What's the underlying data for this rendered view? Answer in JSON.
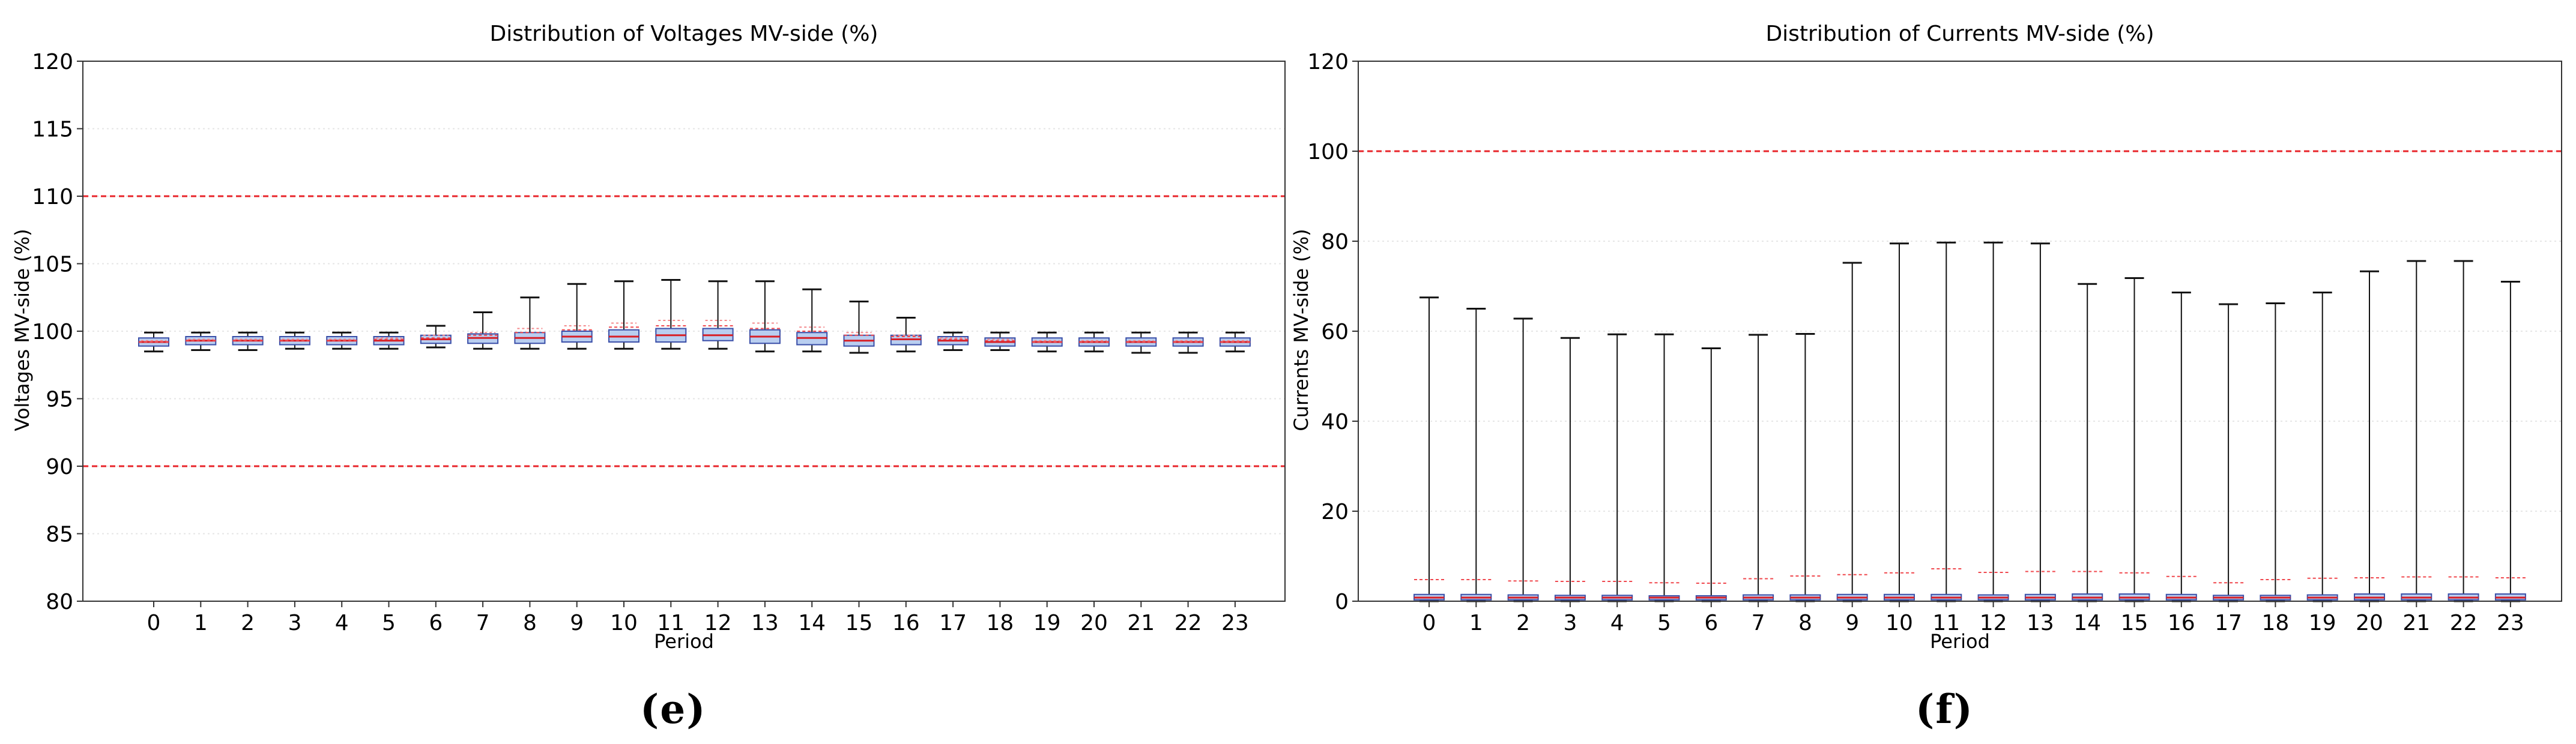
{
  "chart_data": [
    {
      "type": "box",
      "title": "Distribution of Voltages MV-side (%)",
      "xlabel": "Period",
      "ylabel": "Voltages MV-side (%)",
      "ylim": [
        80,
        120
      ],
      "yticks": [
        80,
        85,
        90,
        95,
        100,
        105,
        110,
        115,
        120
      ],
      "categories": [
        "0",
        "1",
        "2",
        "3",
        "4",
        "5",
        "6",
        "7",
        "8",
        "9",
        "10",
        "11",
        "12",
        "13",
        "14",
        "15",
        "16",
        "17",
        "18",
        "19",
        "20",
        "21",
        "22",
        "23"
      ],
      "reference_lines": [
        110,
        90
      ],
      "grid": "horizontal",
      "panel_label": "e",
      "boxes": {
        "whisker_low": [
          98.5,
          98.6,
          98.6,
          98.7,
          98.7,
          98.7,
          98.8,
          98.7,
          98.7,
          98.7,
          98.7,
          98.7,
          98.7,
          98.5,
          98.5,
          98.4,
          98.5,
          98.6,
          98.6,
          98.5,
          98.5,
          98.4,
          98.4,
          98.5
        ],
        "q1": [
          98.9,
          99.0,
          99.0,
          99.0,
          99.0,
          99.0,
          99.1,
          99.1,
          99.1,
          99.2,
          99.2,
          99.2,
          99.3,
          99.1,
          99.0,
          98.9,
          99.0,
          99.0,
          98.9,
          98.9,
          98.9,
          98.9,
          98.9,
          98.9
        ],
        "median": [
          99.2,
          99.3,
          99.3,
          99.3,
          99.3,
          99.3,
          99.4,
          99.5,
          99.5,
          99.6,
          99.6,
          99.7,
          99.7,
          99.6,
          99.5,
          99.3,
          99.4,
          99.3,
          99.2,
          99.2,
          99.2,
          99.2,
          99.2,
          99.2
        ],
        "q3": [
          99.5,
          99.6,
          99.6,
          99.6,
          99.6,
          99.6,
          99.7,
          99.8,
          99.9,
          100.0,
          100.1,
          100.2,
          100.2,
          100.1,
          99.9,
          99.7,
          99.7,
          99.6,
          99.5,
          99.5,
          99.5,
          99.5,
          99.5,
          99.5
        ],
        "whisker_high": [
          99.9,
          99.9,
          99.9,
          99.9,
          99.9,
          99.9,
          100.4,
          101.4,
          102.5,
          103.5,
          103.7,
          103.8,
          103.7,
          103.7,
          103.1,
          102.2,
          101.0,
          99.9,
          99.9,
          99.9,
          99.9,
          99.9,
          99.9,
          99.9
        ],
        "mean": [
          99.2,
          99.3,
          99.3,
          99.3,
          99.3,
          99.4,
          99.5,
          99.7,
          99.9,
          100.1,
          100.3,
          100.4,
          100.4,
          100.2,
          100.0,
          99.7,
          99.6,
          99.4,
          99.3,
          99.2,
          99.2,
          99.2,
          99.2,
          99.2
        ],
        "mean_dash": [
          99.3,
          99.4,
          99.4,
          99.4,
          99.4,
          99.5,
          99.7,
          99.9,
          100.2,
          100.4,
          100.6,
          100.8,
          100.8,
          100.6,
          100.3,
          99.9,
          99.7,
          99.5,
          99.4,
          99.3,
          99.3,
          99.3,
          99.3,
          99.3
        ]
      }
    },
    {
      "type": "box",
      "title": "Distribution of Currents MV-side (%)",
      "xlabel": "Period",
      "ylabel": "Currents MV-side (%)",
      "ylim": [
        0,
        120
      ],
      "yticks": [
        0,
        20,
        40,
        60,
        80,
        100,
        120
      ],
      "categories": [
        "0",
        "1",
        "2",
        "3",
        "4",
        "5",
        "6",
        "7",
        "8",
        "9",
        "10",
        "11",
        "12",
        "13",
        "14",
        "15",
        "16",
        "17",
        "18",
        "19",
        "20",
        "21",
        "22",
        "23"
      ],
      "reference_lines": [
        100
      ],
      "grid": "horizontal",
      "panel_label": "f",
      "boxes": {
        "whisker_low": [
          0,
          0,
          0,
          0,
          0,
          0,
          0,
          0,
          0,
          0,
          0,
          0,
          0,
          0,
          0,
          0,
          0,
          0,
          0,
          0,
          0,
          0,
          0,
          0
        ],
        "q1": [
          0.3,
          0.3,
          0.3,
          0.3,
          0.3,
          0.3,
          0.3,
          0.3,
          0.3,
          0.3,
          0.3,
          0.3,
          0.3,
          0.3,
          0.3,
          0.3,
          0.3,
          0.3,
          0.3,
          0.3,
          0.3,
          0.3,
          0.3,
          0.3
        ],
        "median": [
          0.8,
          0.8,
          0.8,
          0.8,
          0.8,
          0.8,
          0.8,
          0.8,
          0.8,
          0.8,
          0.8,
          0.8,
          0.8,
          0.8,
          0.8,
          0.8,
          0.8,
          0.8,
          0.8,
          0.8,
          0.8,
          0.8,
          0.8,
          0.8
        ],
        "q3": [
          1.5,
          1.5,
          1.4,
          1.3,
          1.3,
          1.2,
          1.2,
          1.4,
          1.4,
          1.5,
          1.5,
          1.5,
          1.4,
          1.5,
          1.6,
          1.6,
          1.5,
          1.3,
          1.3,
          1.4,
          1.6,
          1.6,
          1.6,
          1.6
        ],
        "whisker_high": [
          67.5,
          65.0,
          62.8,
          58.5,
          59.3,
          59.3,
          56.2,
          59.2,
          59.4,
          75.2,
          79.5,
          79.7,
          79.7,
          79.5,
          70.5,
          71.8,
          68.6,
          66.0,
          66.2,
          68.6,
          73.3,
          75.6,
          75.6,
          71.0
        ],
        "mean": [
          4.8,
          4.8,
          4.5,
          4.4,
          4.4,
          4.1,
          4.0,
          5.0,
          5.6,
          5.9,
          6.3,
          7.2,
          6.4,
          6.6,
          6.6,
          6.3,
          5.5,
          4.1,
          4.8,
          5.1,
          5.2,
          5.4,
          5.4,
          5.2
        ]
      }
    }
  ]
}
